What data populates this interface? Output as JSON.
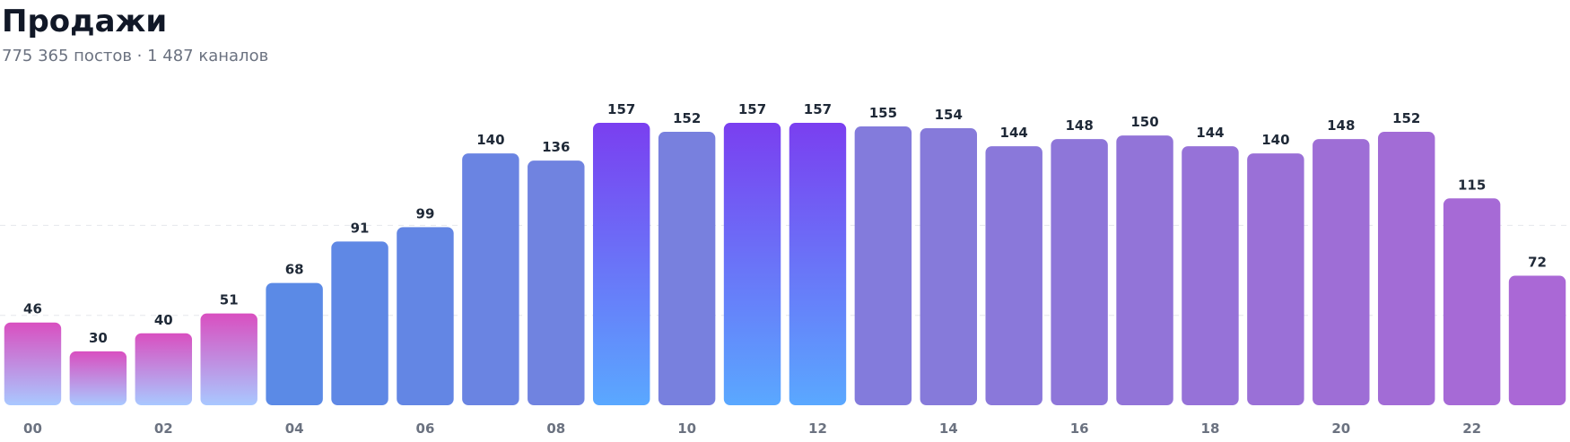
{
  "chart_data": {
    "type": "bar",
    "title": "Продажи",
    "subtitle": "775 365 постов · 1 487 каналов",
    "categories": [
      "00",
      null,
      "02",
      null,
      "04",
      null,
      "06",
      null,
      "08",
      null,
      "10",
      null,
      "12",
      null,
      "14",
      null,
      "16",
      null,
      "18",
      null,
      "20",
      null,
      "22",
      null
    ],
    "values": [
      46,
      30,
      40,
      51,
      68,
      91,
      99,
      140,
      136,
      157,
      152,
      157,
      157,
      155,
      154,
      144,
      148,
      150,
      144,
      140,
      148,
      152,
      115,
      72
    ],
    "colors": [
      [
        "#d94fc0",
        "#a9c8ff"
      ],
      [
        "#d94fc0",
        "#a9c8ff"
      ],
      [
        "#d94fc0",
        "#a9c8ff"
      ],
      [
        "#d94fc0",
        "#a9c8ff"
      ],
      "#5b8ae6",
      "#5f88e5",
      "#6386e4",
      "#6a84e2",
      "#7083e0",
      [
        "#7a3ff0",
        "#5aa8ff"
      ],
      "#7880de",
      [
        "#7a3ff0",
        "#5aa8ff"
      ],
      [
        "#7a3ff0",
        "#5aa8ff"
      ],
      "#837bdc",
      "#867ada",
      "#8a78da",
      "#8e76d9",
      "#9274d8",
      "#9672d8",
      "#9a70d7",
      "#9e6ed6",
      "#a26cd6",
      "#a66ad6",
      "#aa68d6"
    ],
    "ylim": [
      0,
      160
    ],
    "yticks": [
      50,
      100
    ],
    "grid": true
  }
}
